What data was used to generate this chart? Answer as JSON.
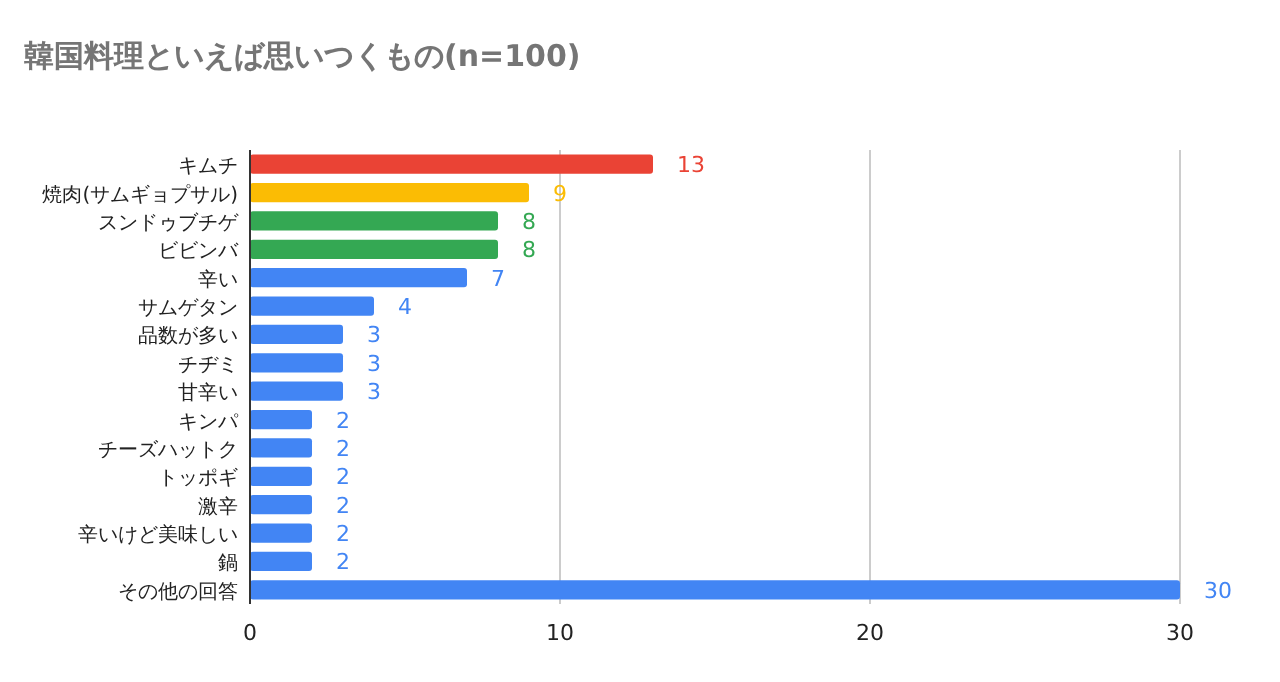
{
  "chart_data": {
    "type": "bar",
    "orientation": "horizontal",
    "title": "韓国料理といえば思いつくもの(n=100)",
    "categories": [
      "キムチ",
      "焼肉(サムギョプサル)",
      "スンドゥブチゲ",
      "ビビンバ",
      "辛い",
      "サムゲタン",
      "品数が多い",
      "チヂミ",
      "甘辛い",
      "キンパ",
      "チーズハットク",
      "トッポギ",
      "激辛",
      "辛いけど美味しい",
      "鍋",
      "その他の回答"
    ],
    "values": [
      13,
      9,
      8,
      8,
      7,
      4,
      3,
      3,
      3,
      2,
      2,
      2,
      2,
      2,
      2,
      30
    ],
    "colors": [
      "#ea4335",
      "#fbbc04",
      "#34a853",
      "#34a853",
      "#4285f4",
      "#4285f4",
      "#4285f4",
      "#4285f4",
      "#4285f4",
      "#4285f4",
      "#4285f4",
      "#4285f4",
      "#4285f4",
      "#4285f4",
      "#4285f4",
      "#4285f4"
    ],
    "xlim": [
      0,
      30
    ],
    "xticks": [
      0,
      10,
      20,
      30
    ],
    "grid": "x",
    "data_labels": true
  }
}
